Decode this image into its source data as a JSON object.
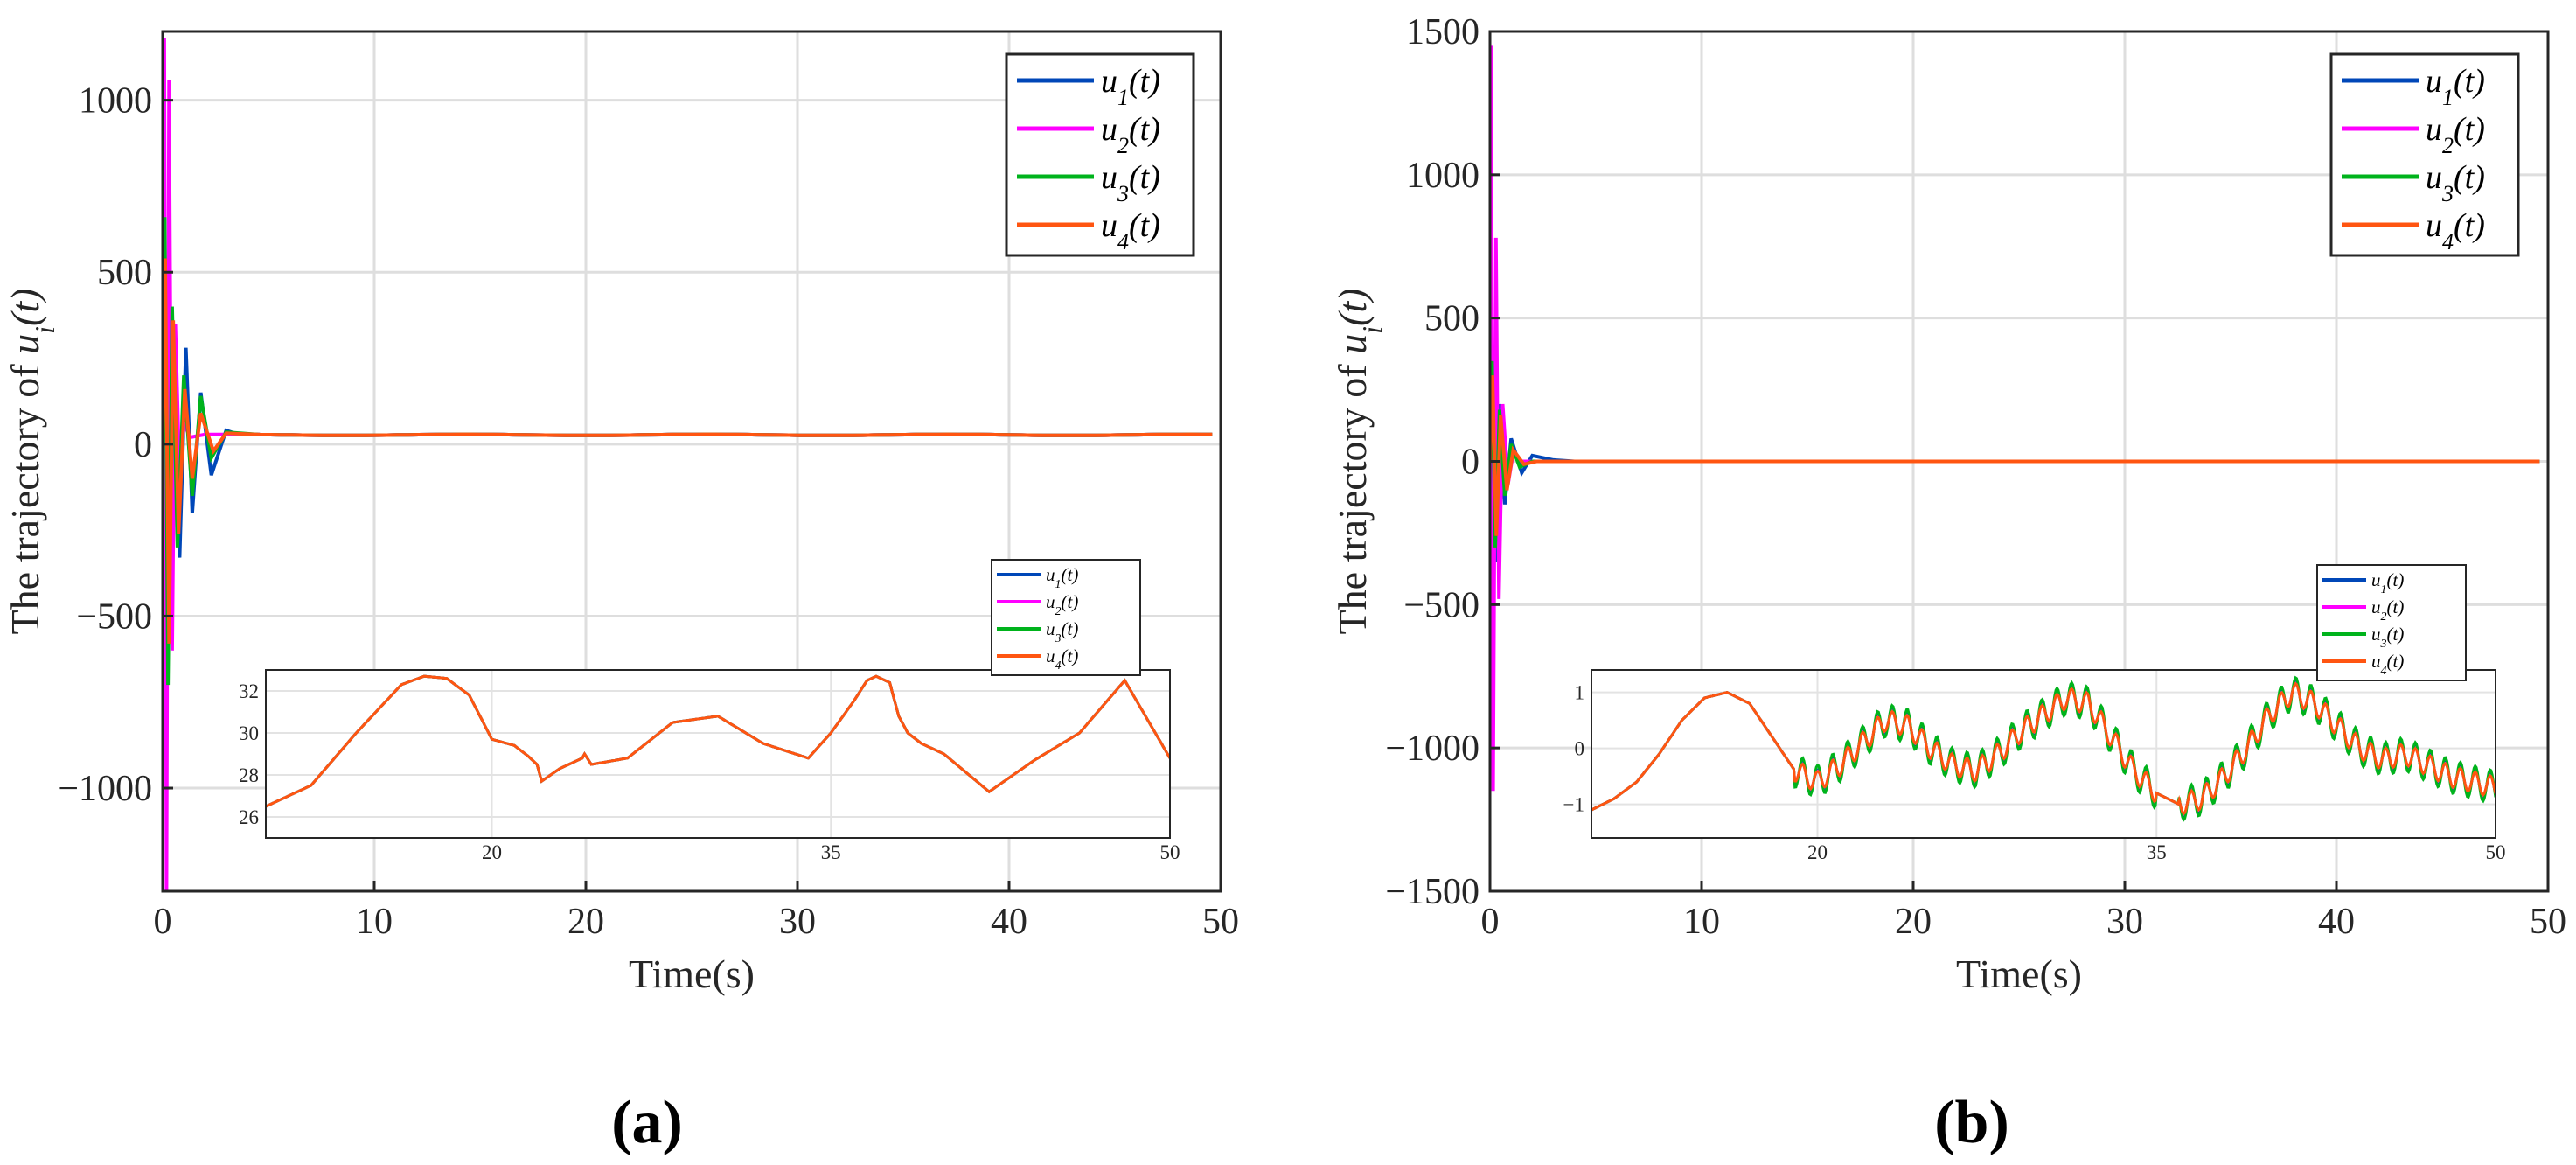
{
  "chart_data": [
    {
      "panel": "(a)",
      "type": "line",
      "xlabel": "Time(s)",
      "ylabel": "The trajectory of u_i(t)",
      "xlim": [
        0,
        50
      ],
      "ylim": [
        -1300,
        1200
      ],
      "xticks": [
        "0",
        "10",
        "20",
        "30",
        "40",
        "50"
      ],
      "yticks": [
        "1000",
        "500",
        "0",
        "−500",
        "−1000"
      ],
      "steady_value": 27,
      "transient": {
        "u1": [
          [
            0,
            0
          ],
          [
            0.1,
            300
          ],
          [
            0.3,
            -400
          ],
          [
            0.55,
            320
          ],
          [
            0.8,
            -330
          ],
          [
            1.1,
            280
          ],
          [
            1.4,
            -200
          ],
          [
            1.8,
            150
          ],
          [
            2.3,
            -90
          ],
          [
            3,
            40
          ],
          [
            3.5,
            30
          ],
          [
            4.5,
            28
          ]
        ],
        "u2": [
          [
            0,
            0
          ],
          [
            0.08,
            1180
          ],
          [
            0.18,
            -1300
          ],
          [
            0.3,
            1060
          ],
          [
            0.45,
            -600
          ],
          [
            0.6,
            350
          ],
          [
            0.8,
            -100
          ],
          [
            1.0,
            60
          ],
          [
            1.3,
            20
          ],
          [
            2,
            28
          ],
          [
            4.5,
            28
          ]
        ],
        "u3": [
          [
            0,
            0
          ],
          [
            0.1,
            660
          ],
          [
            0.25,
            -700
          ],
          [
            0.45,
            400
          ],
          [
            0.7,
            -300
          ],
          [
            1,
            200
          ],
          [
            1.4,
            -150
          ],
          [
            1.8,
            140
          ],
          [
            2.3,
            -40
          ],
          [
            3,
            35
          ],
          [
            4.5,
            28
          ]
        ],
        "u4": [
          [
            0,
            0
          ],
          [
            0.12,
            540
          ],
          [
            0.3,
            -580
          ],
          [
            0.5,
            360
          ],
          [
            0.75,
            -260
          ],
          [
            1.05,
            160
          ],
          [
            1.4,
            -100
          ],
          [
            1.8,
            90
          ],
          [
            2.4,
            -20
          ],
          [
            3,
            32
          ],
          [
            4.5,
            28
          ]
        ]
      },
      "legend": {
        "position": "top-right",
        "entries": [
          "u1(t)",
          "u2(t)",
          "u3(t)",
          "u4(t)"
        ]
      },
      "inset": {
        "legend": {
          "position": "top-right",
          "entries": [
            "u1(t)",
            "u2(t)",
            "u3(t)",
            "u4(t)"
          ]
        },
        "xlim": [
          10,
          50
        ],
        "ylim": [
          25,
          33
        ],
        "xticks": [
          "20",
          "35",
          "50"
        ],
        "yticks": [
          "32",
          "30",
          "28",
          "26"
        ],
        "x": [
          10,
          12,
          14,
          16,
          17,
          18,
          19,
          20,
          21,
          21.6,
          22,
          22.2,
          23,
          24,
          24.1,
          24.4,
          26,
          28,
          30,
          32,
          34,
          35,
          36,
          36.6,
          36.8,
          37,
          37.6,
          38,
          38.4,
          39,
          40,
          42,
          44,
          46,
          48,
          50
        ],
        "y": [
          26.5,
          27.5,
          30.0,
          32.3,
          32.7,
          32.6,
          31.8,
          29.7,
          29.4,
          28.9,
          28.5,
          27.7,
          28.3,
          28.8,
          29.0,
          28.5,
          28.8,
          30.5,
          30.8,
          29.5,
          28.8,
          30.0,
          31.5,
          32.5,
          32.6,
          32.7,
          32.4,
          30.8,
          30.0,
          29.5,
          29.0,
          27.2,
          28.7,
          30.0,
          32.5,
          28.8
        ]
      }
    },
    {
      "panel": "(b)",
      "type": "line",
      "xlabel": "Time(s)",
      "ylabel": "The trajectory of u_i(t)",
      "xlim": [
        0,
        50
      ],
      "ylim": [
        -1500,
        1500
      ],
      "xticks": [
        "0",
        "10",
        "20",
        "30",
        "40",
        "50"
      ],
      "yticks": [
        "1500",
        "1000",
        "500",
        "0",
        "−500",
        "−1000",
        "−1500"
      ],
      "steady_value": 0,
      "transient": {
        "u1": [
          [
            0,
            0
          ],
          [
            0.1,
            250
          ],
          [
            0.25,
            -350
          ],
          [
            0.45,
            200
          ],
          [
            0.7,
            -150
          ],
          [
            1,
            80
          ],
          [
            1.5,
            -40
          ],
          [
            2,
            20
          ],
          [
            3,
            5
          ],
          [
            4,
            0
          ]
        ],
        "u2": [
          [
            0,
            0
          ],
          [
            0.05,
            1450
          ],
          [
            0.15,
            -1150
          ],
          [
            0.28,
            780
          ],
          [
            0.42,
            -480
          ],
          [
            0.6,
            200
          ],
          [
            0.85,
            -80
          ],
          [
            1.1,
            30
          ],
          [
            1.5,
            0
          ],
          [
            4,
            0
          ]
        ],
        "u3": [
          [
            0,
            0
          ],
          [
            0.1,
            350
          ],
          [
            0.25,
            -300
          ],
          [
            0.45,
            180
          ],
          [
            0.7,
            -120
          ],
          [
            1,
            60
          ],
          [
            1.4,
            -20
          ],
          [
            2,
            0
          ],
          [
            4,
            0
          ]
        ],
        "u4": [
          [
            0,
            0
          ],
          [
            0.12,
            300
          ],
          [
            0.3,
            -260
          ],
          [
            0.5,
            160
          ],
          [
            0.8,
            -100
          ],
          [
            1.1,
            40
          ],
          [
            1.6,
            -10
          ],
          [
            2.2,
            0
          ],
          [
            4,
            0
          ]
        ]
      },
      "legend": {
        "position": "top-right",
        "entries": [
          "u1(t)",
          "u2(t)",
          "u3(t)",
          "u4(t)"
        ]
      },
      "inset": {
        "legend": {
          "position": "top-right",
          "entries": [
            "u1(t)",
            "u2(t)",
            "u3(t)",
            "u4(t)"
          ]
        },
        "xlim": [
          10,
          50
        ],
        "ylim": [
          -1.6,
          1.4
        ],
        "xticks": [
          "20",
          "35",
          "50"
        ],
        "yticks": [
          "1",
          "0",
          "−1"
        ],
        "x": [
          10,
          11,
          12,
          13,
          14,
          15,
          16,
          17,
          18,
          19,
          20,
          21,
          22,
          23,
          24,
          25,
          26,
          27,
          28,
          29,
          30,
          31,
          32,
          33,
          34,
          35,
          36,
          37,
          38,
          39,
          40,
          41,
          42,
          43,
          44,
          45,
          46,
          47,
          48,
          49,
          50
        ],
        "y": [
          -1.1,
          -0.9,
          -0.6,
          -0.1,
          0.5,
          0.9,
          1.0,
          0.8,
          0.2,
          -0.4,
          -0.6,
          -0.3,
          0.1,
          0.5,
          0.4,
          0.0,
          -0.3,
          -0.4,
          -0.1,
          0.3,
          0.6,
          0.9,
          0.8,
          0.2,
          -0.4,
          -0.8,
          -1.0,
          -0.9,
          -0.5,
          0.0,
          0.6,
          1.0,
          0.8,
          0.4,
          0.0,
          -0.2,
          -0.1,
          -0.3,
          -0.5,
          -0.6,
          -0.7
        ],
        "wiggle_ranges": [
          [
            19,
            35
          ],
          [
            36,
            50
          ]
        ]
      }
    }
  ],
  "series_colors": {
    "u1": "#0047b8",
    "u2": "#ff00ff",
    "u3": "#00b31c",
    "u4": "#ff5511"
  },
  "panel_labels": [
    "(a)",
    "(b)"
  ]
}
